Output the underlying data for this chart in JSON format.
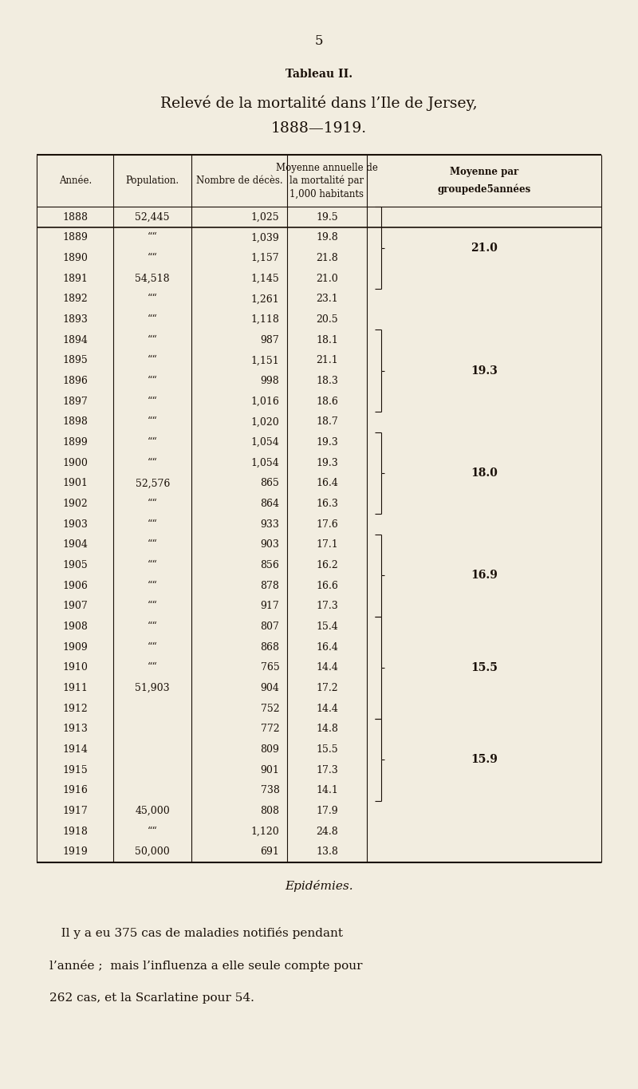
{
  "page_number": "5",
  "subtitle": "Tableau II.",
  "title_line1": "Relevé de la mortalité dans l’Ile de Jersey,",
  "title_line2": "1888—1919.",
  "col_headers_line1": [
    "Année.",
    "Population.",
    "Nombre de décès.",
    "Moyenne annuelle de",
    "Moyenne par"
  ],
  "col_headers_line2": [
    "",
    "",
    "",
    "la mortalité par",
    "groupede5années"
  ],
  "col_headers_line3": [
    "",
    "",
    "",
    "1,000 habitants",
    ""
  ],
  "rows": [
    [
      "1888",
      "52,445",
      "1,025",
      "19.5",
      ""
    ],
    [
      "1889",
      "““",
      "1,039",
      "19.8",
      ""
    ],
    [
      "1890",
      "““",
      "1,157",
      "21.8",
      ""
    ],
    [
      "1891",
      "54,518",
      "1,145",
      "21.0",
      ""
    ],
    [
      "1892",
      "““",
      "1,261",
      "23.1",
      ""
    ],
    [
      "1893",
      "““",
      "1,118",
      "20.5",
      ""
    ],
    [
      "1894",
      "““",
      "987",
      "18.1",
      ""
    ],
    [
      "1895",
      "““",
      "1,151",
      "21.1",
      ""
    ],
    [
      "1896",
      "““",
      "998",
      "18.3",
      ""
    ],
    [
      "1897",
      "““",
      "1,016",
      "18.6",
      ""
    ],
    [
      "1898",
      "““",
      "1,020",
      "18.7",
      ""
    ],
    [
      "1899",
      "““",
      "1,054",
      "19.3",
      ""
    ],
    [
      "1900",
      "““",
      "1,054",
      "19.3",
      ""
    ],
    [
      "1901",
      "52,576",
      "865",
      "16.4",
      ""
    ],
    [
      "1902",
      "““",
      "864",
      "16.3",
      ""
    ],
    [
      "1903",
      "““",
      "933",
      "17.6",
      ""
    ],
    [
      "1904",
      "““",
      "903",
      "17.1",
      ""
    ],
    [
      "1905",
      "““",
      "856",
      "16.2",
      ""
    ],
    [
      "1906",
      "““",
      "878",
      "16.6",
      ""
    ],
    [
      "1907",
      "““",
      "917",
      "17.3",
      ""
    ],
    [
      "1908",
      "““",
      "807",
      "15.4",
      ""
    ],
    [
      "1909",
      "““",
      "868",
      "16.4",
      ""
    ],
    [
      "1910",
      "““",
      "765",
      "14.4",
      ""
    ],
    [
      "1911",
      "51,903",
      "904",
      "17.2",
      ""
    ],
    [
      "1912",
      "",
      "752",
      "14.4",
      ""
    ],
    [
      "1913",
      "",
      "772",
      "14.8",
      ""
    ],
    [
      "1914",
      "",
      "809",
      "15.5",
      ""
    ],
    [
      "1915",
      "",
      "901",
      "17.3",
      ""
    ],
    [
      "1916",
      "",
      "738",
      "14.1",
      ""
    ],
    [
      "1917",
      "45,000",
      "808",
      "17.9",
      ""
    ],
    [
      "1918",
      "““",
      "1,120",
      "24.8",
      ""
    ],
    [
      "1919",
      "50,000",
      "691",
      "13.8",
      ""
    ]
  ],
  "brace_groups": [
    {
      "r_start": 0,
      "r_end": 3,
      "label": "21.0"
    },
    {
      "r_start": 6,
      "r_end": 9,
      "label": "19.3"
    },
    {
      "r_start": 11,
      "r_end": 14,
      "label": "18.0"
    },
    {
      "r_start": 16,
      "r_end": 19,
      "label": "16.9"
    },
    {
      "r_start": 20,
      "r_end": 24,
      "label": "15.5"
    },
    {
      "r_start": 25,
      "r_end": 28,
      "label": "15.9"
    }
  ],
  "epidemies_title": "Epidémies.",
  "epidemies_lines": [
    "   Il y a eu 375 cas de maladies notifiés pendant",
    "l’année ;  mais l’influenza a elle seule compte pour",
    "262 cas, et la Scarlatine pour 54."
  ],
  "bg_color": "#f2ede0",
  "text_color": "#1a1008",
  "line_color": "#1a1008"
}
